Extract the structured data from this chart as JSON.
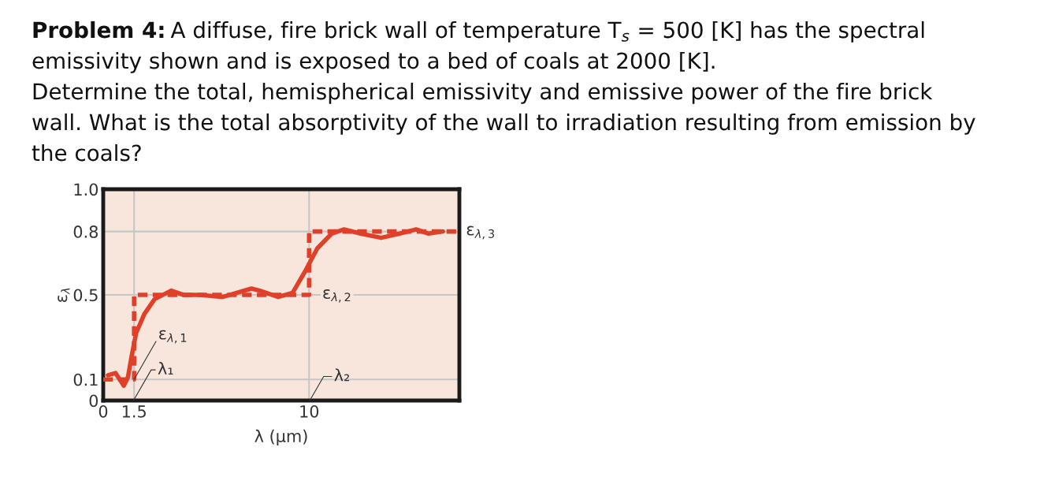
{
  "chart_data": {
    "type": "line",
    "title": "Problem 4:",
    "subtitle": "A diffuse, fire brick wall of temperature T$_{s}$ = 500 [K] has the spectral\nemissivity shown and is exposed to a bed of coals at 2000 [K].\nDetermine the total, hemispherical emissivity and emissive power of the fire brick\nwall. What is the total absorptivity of the wall to irradiation resulting from emission by\nthe coals?",
    "xlabel": "λ (μm)",
    "ylabel": "ε$_{λ}$",
    "series": [
      {
        "color": "#e0402a",
        "line_style": "solid",
        "x": [
          0.23,
          0.6,
          1.0,
          1.2,
          1.38,
          1.6,
          2.0,
          2.5,
          3.3,
          3.9,
          4.7,
          5.8,
          7.2,
          7.6,
          8.5,
          9.2,
          9.8,
          10.4,
          11.1,
          11.7,
          12.5,
          13.5,
          14.4,
          15.2,
          15.8,
          16.5
        ],
        "values": [
          0.12,
          0.13,
          0.07,
          0.11,
          0.21,
          0.32,
          0.41,
          0.48,
          0.52,
          0.5,
          0.5,
          0.49,
          0.53,
          0.52,
          0.49,
          0.51,
          0.61,
          0.72,
          0.79,
          0.81,
          0.79,
          0.77,
          0.79,
          0.81,
          0.79,
          0.8
        ]
      },
      {
        "type": "step",
        "color": "#e0402a",
        "line_style": "dashed",
        "x": [
          0,
          1.5,
          10,
          17.3
        ],
        "values": [
          0.1,
          0.5,
          0.8,
          0.8
        ]
      }
    ],
    "annotations": [
      {
        "text": "ε$_{λ,1}$",
        "x": 1.5,
        "y": 0.1
      },
      "λ₁",
      {
        "text": "ε$_{λ,2}$",
        "x": 10,
        "y": 0.5
      },
      "λ₂",
      {
        "text": "ε$_{λ,3}$",
        "x": 17.3,
        "y": 0.8
      }
    ],
    "xlim": [
      0,
      17.3
    ],
    "ylim": [
      0,
      1.0
    ],
    "xticks": [
      0,
      1.5,
      10
    ],
    "yticks": [
      0,
      0.1,
      0.5,
      0.8,
      {
        "value": 1.0,
        "label": "1.0"
      }
    ],
    "grid": true
  }
}
